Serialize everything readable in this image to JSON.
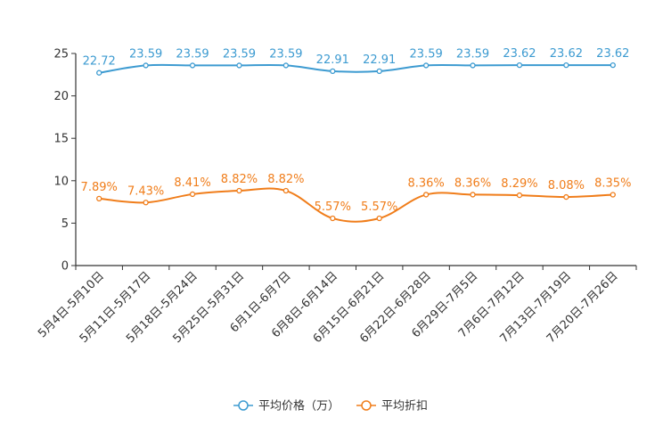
{
  "chart_data": {
    "type": "line",
    "title": "",
    "xlabel": "",
    "ylabel": "",
    "ylim": [
      0,
      25
    ],
    "yticks": [
      0,
      5,
      10,
      15,
      20,
      25
    ],
    "grid": false,
    "legend_position": "bottom-center",
    "categories": [
      "5月4日-5月10日",
      "5月11日-5月17日",
      "5月18日-5月24日",
      "5月25日-5月31日",
      "6月1日-6月7日",
      "6月8日-6月14日",
      "6月15日-6月21日",
      "6月22日-6月28日",
      "6月29日-7月5日",
      "7月6日-7月12日",
      "7月13日-7月19日",
      "7月20日-7月26日"
    ],
    "series": [
      {
        "name": "平均价格（万）",
        "color": "#3d9bd1",
        "values": [
          22.72,
          23.59,
          23.59,
          23.59,
          23.59,
          22.91,
          22.91,
          23.59,
          23.59,
          23.62,
          23.62,
          23.62
        ],
        "labels": [
          "22.72",
          "23.59",
          "23.59",
          "23.59",
          "23.59",
          "22.91",
          "22.91",
          "23.59",
          "23.59",
          "23.62",
          "23.62",
          "23.62"
        ]
      },
      {
        "name": "平均折扣",
        "color": "#f07d1a",
        "values": [
          7.89,
          7.43,
          8.41,
          8.82,
          8.82,
          5.57,
          5.57,
          8.36,
          8.36,
          8.29,
          8.08,
          8.35
        ],
        "labels": [
          "7.89%",
          "7.43%",
          "8.41%",
          "8.82%",
          "8.82%",
          "5.57%",
          "5.57%",
          "8.36%",
          "8.36%",
          "8.29%",
          "8.08%",
          "8.35%"
        ]
      }
    ]
  }
}
